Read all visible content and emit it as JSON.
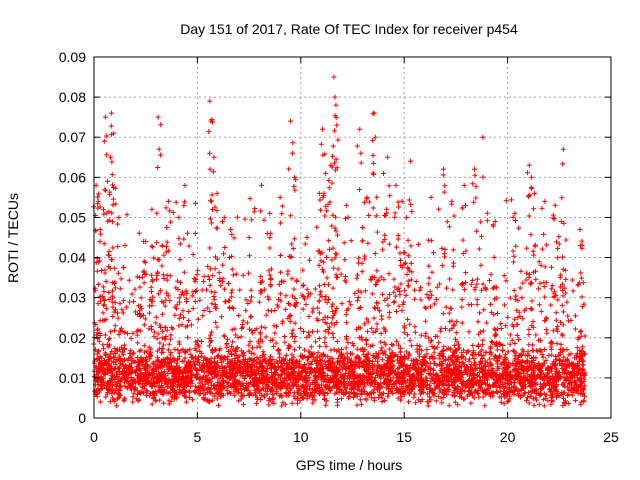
{
  "chart_data": {
    "type": "scatter",
    "title": "Day 151 of 2017, Rate Of TEC Index for receiver p454",
    "xlabel": "GPS time / hours",
    "ylabel": "ROTI / TECUs",
    "xlim": [
      0,
      25
    ],
    "ylim": [
      0,
      0.09
    ],
    "xticks": [
      {
        "value": 0,
        "label": "0"
      },
      {
        "value": 5,
        "label": "5"
      },
      {
        "value": 10,
        "label": "10"
      },
      {
        "value": 15,
        "label": "15"
      },
      {
        "value": 20,
        "label": "20"
      },
      {
        "value": 25,
        "label": "25"
      }
    ],
    "yticks": [
      {
        "value": 0,
        "label": "0"
      },
      {
        "value": 0.01,
        "label": "0.01"
      },
      {
        "value": 0.02,
        "label": "0.02"
      },
      {
        "value": 0.03,
        "label": "0.03"
      },
      {
        "value": 0.04,
        "label": "0.04"
      },
      {
        "value": 0.05,
        "label": "0.05"
      },
      {
        "value": 0.06,
        "label": "0.06"
      },
      {
        "value": 0.07,
        "label": "0.07"
      },
      {
        "value": 0.08,
        "label": "0.08"
      },
      {
        "value": 0.09,
        "label": "0.09"
      }
    ],
    "grid": true,
    "marker": "+",
    "series": [
      {
        "color": "#ff0000",
        "x_range": [
          0,
          23.75
        ],
        "points": [
          {
            "x": 0.1,
            "y": 0.058
          },
          {
            "x": 0.2,
            "y": 0.054
          },
          {
            "x": 0.3,
            "y": 0.047
          },
          {
            "x": 0.5,
            "y": 0.069
          },
          {
            "x": 0.55,
            "y": 0.075
          },
          {
            "x": 0.65,
            "y": 0.059
          },
          {
            "x": 0.85,
            "y": 0.076
          },
          {
            "x": 0.95,
            "y": 0.071
          },
          {
            "x": 0.8,
            "y": 0.065
          },
          {
            "x": 1.2,
            "y": 0.05
          },
          {
            "x": 1.5,
            "y": 0.043
          },
          {
            "x": 2.2,
            "y": 0.035
          },
          {
            "x": 2.5,
            "y": 0.044
          },
          {
            "x": 2.8,
            "y": 0.052
          },
          {
            "x": 3.1,
            "y": 0.075
          },
          {
            "x": 3.15,
            "y": 0.067
          },
          {
            "x": 3.3,
            "y": 0.043
          },
          {
            "x": 3.6,
            "y": 0.054
          },
          {
            "x": 4.1,
            "y": 0.05
          },
          {
            "x": 4.4,
            "y": 0.058
          },
          {
            "x": 4.9,
            "y": 0.046
          },
          {
            "x": 5.6,
            "y": 0.079
          },
          {
            "x": 5.65,
            "y": 0.074
          },
          {
            "x": 5.8,
            "y": 0.065
          },
          {
            "x": 5.95,
            "y": 0.056
          },
          {
            "x": 6.3,
            "y": 0.05
          },
          {
            "x": 6.6,
            "y": 0.047
          },
          {
            "x": 7.5,
            "y": 0.045
          },
          {
            "x": 8.1,
            "y": 0.058
          },
          {
            "x": 8.5,
            "y": 0.051
          },
          {
            "x": 9.0,
            "y": 0.055
          },
          {
            "x": 9.5,
            "y": 0.074
          },
          {
            "x": 9.6,
            "y": 0.066
          },
          {
            "x": 9.7,
            "y": 0.06
          },
          {
            "x": 10.3,
            "y": 0.045
          },
          {
            "x": 10.9,
            "y": 0.056
          },
          {
            "x": 11.05,
            "y": 0.072
          },
          {
            "x": 11.2,
            "y": 0.061
          },
          {
            "x": 11.45,
            "y": 0.063
          },
          {
            "x": 11.6,
            "y": 0.085
          },
          {
            "x": 11.65,
            "y": 0.08
          },
          {
            "x": 11.7,
            "y": 0.078
          },
          {
            "x": 12.2,
            "y": 0.053
          },
          {
            "x": 12.85,
            "y": 0.072
          },
          {
            "x": 12.9,
            "y": 0.066
          },
          {
            "x": 13.2,
            "y": 0.055
          },
          {
            "x": 13.55,
            "y": 0.076
          },
          {
            "x": 13.6,
            "y": 0.07
          },
          {
            "x": 14.0,
            "y": 0.061
          },
          {
            "x": 14.2,
            "y": 0.065
          },
          {
            "x": 14.6,
            "y": 0.058
          },
          {
            "x": 14.9,
            "y": 0.054
          },
          {
            "x": 15.1,
            "y": 0.05
          },
          {
            "x": 15.3,
            "y": 0.064
          },
          {
            "x": 16.3,
            "y": 0.055
          },
          {
            "x": 16.9,
            "y": 0.062
          },
          {
            "x": 17.3,
            "y": 0.054
          },
          {
            "x": 17.9,
            "y": 0.058
          },
          {
            "x": 18.4,
            "y": 0.062
          },
          {
            "x": 18.8,
            "y": 0.07
          },
          {
            "x": 19.4,
            "y": 0.049
          },
          {
            "x": 20.35,
            "y": 0.051
          },
          {
            "x": 21.05,
            "y": 0.063
          },
          {
            "x": 21.15,
            "y": 0.06
          },
          {
            "x": 21.3,
            "y": 0.056
          },
          {
            "x": 21.8,
            "y": 0.054
          },
          {
            "x": 22.3,
            "y": 0.053
          },
          {
            "x": 22.6,
            "y": 0.049
          },
          {
            "x": 22.7,
            "y": 0.067
          },
          {
            "x": 23.5,
            "y": 0.047
          },
          {
            "x": 23.6,
            "y": 0.043
          }
        ]
      }
    ]
  }
}
